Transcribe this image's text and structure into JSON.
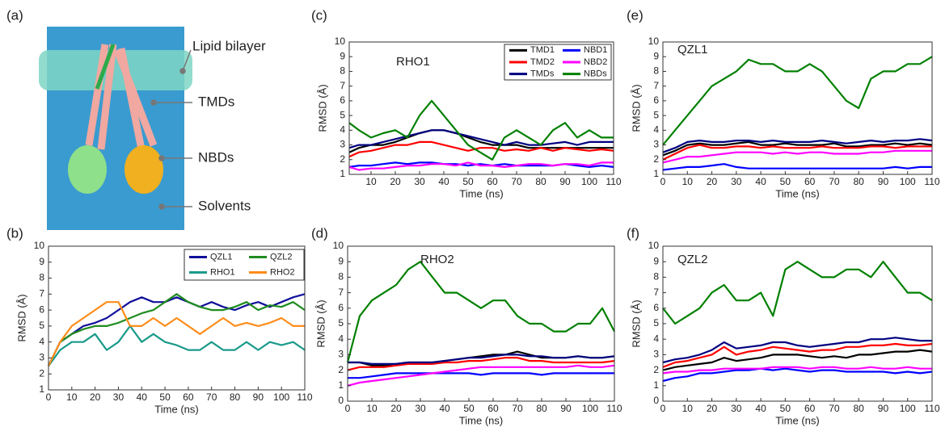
{
  "panel_a": {
    "panel_label": "(a)",
    "labels": [
      "Lipid bilayer",
      "TMDs",
      "NBDs",
      "Solvents"
    ]
  },
  "chart_data": [
    {
      "type": "line",
      "panel_label": "(b)",
      "xlabel": "Time (ns)",
      "ylabel": "RMSD (Å)",
      "legend": true,
      "xlim": [
        0,
        110
      ],
      "ylim": [
        1,
        10
      ],
      "xticks": [
        0,
        10,
        20,
        30,
        40,
        50,
        60,
        70,
        80,
        90,
        100,
        110
      ],
      "yticks": [
        1,
        2,
        3,
        4,
        5,
        6,
        7,
        8,
        9,
        10
      ],
      "x": [
        0,
        5,
        10,
        15,
        20,
        25,
        30,
        35,
        40,
        45,
        50,
        55,
        60,
        65,
        70,
        75,
        80,
        85,
        90,
        95,
        100,
        105,
        110
      ],
      "series": [
        {
          "name": "QZL1",
          "color": "#10109a",
          "values": [
            2.5,
            4,
            4.5,
            5,
            5.2,
            5.5,
            6,
            6.5,
            6.8,
            6.5,
            6.5,
            6.8,
            6.5,
            6.2,
            6.5,
            6.2,
            6,
            6.3,
            6.5,
            6.2,
            6.5,
            6.8,
            7
          ]
        },
        {
          "name": "QZL2",
          "color": "#1f8c1f",
          "values": [
            2.5,
            4,
            4.5,
            4.8,
            5,
            5,
            5.2,
            5.5,
            5.8,
            6,
            6.5,
            7,
            6.5,
            6.2,
            6,
            6,
            6.2,
            6.5,
            6,
            6.3,
            6.2,
            6.5,
            6
          ]
        },
        {
          "name": "RHO1",
          "color": "#1a9a8a",
          "values": [
            2.5,
            3.5,
            4,
            4,
            4.5,
            3.5,
            4,
            5,
            4,
            4.5,
            4,
            3.8,
            3.5,
            3.5,
            4,
            3.5,
            3.5,
            4,
            3.5,
            4,
            3.8,
            4,
            3.5
          ]
        },
        {
          "name": "RHO2",
          "color": "#ff8c1a",
          "values": [
            2.5,
            4,
            5,
            5.5,
            6,
            6.5,
            6.5,
            5,
            5,
            5.5,
            5,
            5.5,
            5,
            4.5,
            5,
            5.5,
            5,
            5.2,
            5,
            5.2,
            5.5,
            5,
            5
          ]
        }
      ]
    },
    {
      "type": "line",
      "panel_label": "(c)",
      "annotation": "RHO1",
      "xlabel": "Time (ns)",
      "ylabel": "RMSD (Å)",
      "legend": true,
      "xlim": [
        1,
        110
      ],
      "ylim": [
        1,
        10
      ],
      "xticks": [
        10,
        20,
        30,
        40,
        50,
        60,
        70,
        80,
        90,
        100,
        110
      ],
      "yticks": [
        1,
        2,
        3,
        4,
        5,
        6,
        7,
        8,
        9,
        10
      ],
      "x": [
        1,
        5,
        10,
        15,
        20,
        25,
        30,
        35,
        40,
        45,
        50,
        55,
        60,
        65,
        70,
        75,
        80,
        85,
        90,
        95,
        100,
        105,
        110
      ],
      "series": [
        {
          "name": "TMD1",
          "color": "#000000",
          "values": [
            2.5,
            2.8,
            3,
            3,
            3.2,
            3.5,
            3.8,
            4,
            4,
            3.8,
            3.5,
            3.2,
            3,
            3,
            3,
            2.8,
            2.8,
            2.8,
            2.8,
            2.8,
            2.8,
            2.8,
            2.8
          ]
        },
        {
          "name": "NBD1",
          "color": "#0000ff",
          "values": [
            1.5,
            1.6,
            1.6,
            1.7,
            1.8,
            1.7,
            1.8,
            1.8,
            1.7,
            1.7,
            1.6,
            1.7,
            1.6,
            1.7,
            1.6,
            1.6,
            1.6,
            1.6,
            1.7,
            1.6,
            1.5,
            1.6,
            1.5
          ]
        },
        {
          "name": "TMD2",
          "color": "#ff0000",
          "values": [
            2.2,
            2.5,
            2.6,
            2.8,
            3,
            3,
            3.2,
            3.2,
            3,
            2.8,
            2.6,
            2.8,
            2.8,
            2.6,
            2.7,
            2.6,
            2.8,
            2.6,
            2.8,
            2.7,
            2.6,
            2.7,
            2.6
          ]
        },
        {
          "name": "NBD2",
          "color": "#ff00ff",
          "values": [
            1.5,
            1.3,
            1.4,
            1.4,
            1.5,
            1.6,
            1.6,
            1.7,
            1.7,
            1.6,
            1.8,
            1.6,
            1.6,
            1.5,
            1.6,
            1.7,
            1.7,
            1.6,
            1.7,
            1.7,
            1.6,
            1.8,
            1.8
          ]
        },
        {
          "name": "TMDs",
          "color": "#000080",
          "values": [
            2.8,
            3,
            3,
            3.2,
            3.4,
            3.6,
            3.8,
            4,
            4,
            3.8,
            3.6,
            3.4,
            3.2,
            3,
            3.2,
            3,
            3,
            3.1,
            3.2,
            3,
            3.2,
            3.2,
            3.2
          ]
        },
        {
          "name": "NBDs",
          "color": "#008000",
          "values": [
            4.5,
            4,
            3.5,
            3.8,
            4,
            3.5,
            5,
            6,
            5,
            4,
            3,
            2.5,
            2,
            3.5,
            4,
            3.5,
            3,
            4,
            4.5,
            3.5,
            4,
            3.5,
            3.5
          ]
        }
      ]
    },
    {
      "type": "line",
      "panel_label": "(d)",
      "annotation": "RHO2",
      "xlabel": "Time (ns)",
      "ylabel": "RMSD (Å)",
      "legend": false,
      "xlim": [
        0,
        110
      ],
      "ylim": [
        0,
        10
      ],
      "xticks": [
        0,
        10,
        20,
        30,
        40,
        50,
        60,
        70,
        80,
        90,
        100,
        110
      ],
      "yticks": [
        0,
        1,
        2,
        3,
        4,
        5,
        6,
        7,
        8,
        9,
        10
      ],
      "x": [
        0,
        5,
        10,
        15,
        20,
        25,
        30,
        35,
        40,
        45,
        50,
        55,
        60,
        65,
        70,
        75,
        80,
        85,
        90,
        95,
        100,
        105,
        110
      ],
      "series": [
        {
          "color": "#000000",
          "values": [
            2.5,
            2.5,
            2.3,
            2.3,
            2.4,
            2.5,
            2.5,
            2.5,
            2.6,
            2.7,
            2.8,
            2.9,
            3,
            3,
            3.2,
            3,
            2.8,
            2.8,
            2.8,
            2.9,
            2.8,
            2.8,
            2.9
          ]
        },
        {
          "color": "#0000ff",
          "values": [
            1.5,
            1.5,
            1.6,
            1.7,
            1.8,
            1.8,
            1.8,
            1.8,
            1.8,
            1.8,
            1.8,
            1.7,
            1.8,
            1.8,
            1.8,
            1.8,
            1.7,
            1.8,
            1.8,
            1.8,
            1.8,
            1.8,
            1.8
          ]
        },
        {
          "color": "#ff0000",
          "values": [
            2,
            2.2,
            2.2,
            2.2,
            2.3,
            2.4,
            2.4,
            2.4,
            2.5,
            2.5,
            2.6,
            2.6,
            2.7,
            2.8,
            2.8,
            2.6,
            2.6,
            2.5,
            2.5,
            2.5,
            2.5,
            2.5,
            2.6
          ]
        },
        {
          "color": "#ff00ff",
          "values": [
            1,
            1.2,
            1.3,
            1.4,
            1.5,
            1.6,
            1.7,
            1.8,
            1.9,
            2,
            2.1,
            2.2,
            2.2,
            2.2,
            2.2,
            2.2,
            2.2,
            2.2,
            2.2,
            2.3,
            2.2,
            2.2,
            2.3
          ]
        },
        {
          "color": "#000080",
          "values": [
            2.5,
            2.5,
            2.4,
            2.4,
            2.4,
            2.5,
            2.5,
            2.5,
            2.6,
            2.7,
            2.8,
            2.8,
            2.9,
            3,
            3,
            2.9,
            2.9,
            2.8,
            2.8,
            2.9,
            2.8,
            2.8,
            2.9
          ]
        },
        {
          "color": "#008000",
          "values": [
            2.5,
            5.5,
            6.5,
            7,
            7.5,
            8.5,
            9,
            8,
            7,
            7,
            6.5,
            6,
            6.5,
            6.5,
            5.5,
            5,
            5,
            4.5,
            4.5,
            5,
            5,
            6,
            4.5
          ]
        }
      ]
    },
    {
      "type": "line",
      "panel_label": "(e)",
      "annotation": "QZL1",
      "xlabel": "Time (ns)",
      "ylabel": "RMSD (Å)",
      "legend": false,
      "xlim": [
        0,
        110
      ],
      "ylim": [
        1,
        10
      ],
      "xticks": [
        0,
        10,
        20,
        30,
        40,
        50,
        60,
        70,
        80,
        90,
        100,
        110
      ],
      "yticks": [
        1,
        2,
        3,
        4,
        5,
        6,
        7,
        8,
        9,
        10
      ],
      "x": [
        0,
        5,
        10,
        15,
        20,
        25,
        30,
        35,
        40,
        45,
        50,
        55,
        60,
        65,
        70,
        75,
        80,
        85,
        90,
        95,
        100,
        105,
        110
      ],
      "series": [
        {
          "color": "#000000",
          "values": [
            2.3,
            2.6,
            3,
            3.1,
            3,
            3,
            3.1,
            3.2,
            3,
            3,
            3.1,
            3,
            3,
            3,
            3.1,
            2.9,
            2.9,
            3,
            3,
            3.1,
            3,
            3.1,
            3
          ]
        },
        {
          "color": "#0000ff",
          "values": [
            1.3,
            1.4,
            1.5,
            1.5,
            1.6,
            1.7,
            1.5,
            1.4,
            1.4,
            1.4,
            1.4,
            1.4,
            1.4,
            1.4,
            1.4,
            1.4,
            1.4,
            1.4,
            1.4,
            1.5,
            1.4,
            1.5,
            1.5
          ]
        },
        {
          "color": "#ff0000",
          "values": [
            2,
            2.4,
            2.8,
            3,
            2.8,
            2.8,
            2.9,
            2.9,
            2.8,
            2.9,
            2.8,
            2.8,
            2.8,
            2.9,
            2.8,
            2.8,
            2.8,
            2.9,
            2.9,
            2.8,
            2.9,
            2.9,
            2.9
          ]
        },
        {
          "color": "#ff00ff",
          "values": [
            1.8,
            2,
            2.2,
            2.2,
            2.3,
            2.4,
            2.5,
            2.5,
            2.5,
            2.4,
            2.5,
            2.4,
            2.5,
            2.5,
            2.4,
            2.4,
            2.4,
            2.5,
            2.5,
            2.6,
            2.6,
            2.6,
            2.6
          ]
        },
        {
          "color": "#000080",
          "values": [
            2.5,
            2.8,
            3.2,
            3.3,
            3.2,
            3.2,
            3.3,
            3.3,
            3.2,
            3.3,
            3.2,
            3.2,
            3.2,
            3.3,
            3.2,
            3.1,
            3.2,
            3.3,
            3.2,
            3.3,
            3.3,
            3.4,
            3.3
          ]
        },
        {
          "color": "#008000",
          "values": [
            3,
            4,
            5,
            6,
            7,
            7.5,
            8,
            8.8,
            8.5,
            8.5,
            8,
            8,
            8.5,
            8,
            7,
            6,
            5.5,
            7.5,
            8,
            8,
            8.5,
            8.5,
            9
          ]
        }
      ]
    },
    {
      "type": "line",
      "panel_label": "(f)",
      "annotation": "QZL2",
      "xlabel": "Time (ns)",
      "ylabel": "RMSD (Å)",
      "legend": false,
      "xlim": [
        0,
        110
      ],
      "ylim": [
        0,
        10
      ],
      "xticks": [
        0,
        10,
        20,
        30,
        40,
        50,
        60,
        70,
        80,
        90,
        100,
        110
      ],
      "yticks": [
        0,
        1,
        2,
        3,
        4,
        5,
        6,
        7,
        8,
        9,
        10
      ],
      "x": [
        0,
        5,
        10,
        15,
        20,
        25,
        30,
        35,
        40,
        45,
        50,
        55,
        60,
        65,
        70,
        75,
        80,
        85,
        90,
        95,
        100,
        105,
        110
      ],
      "series": [
        {
          "color": "#000000",
          "values": [
            2,
            2.2,
            2.3,
            2.4,
            2.5,
            2.8,
            2.6,
            2.7,
            2.8,
            3,
            3,
            3,
            2.9,
            2.8,
            2.9,
            2.8,
            3,
            3,
            3.1,
            3.2,
            3.2,
            3.3,
            3.2
          ]
        },
        {
          "color": "#0000ff",
          "values": [
            1.3,
            1.5,
            1.6,
            1.8,
            1.8,
            1.9,
            2,
            2,
            2.1,
            2,
            2.1,
            2,
            1.9,
            2,
            2,
            1.9,
            1.9,
            1.9,
            1.9,
            1.8,
            1.9,
            1.8,
            1.9
          ]
        },
        {
          "color": "#ff0000",
          "values": [
            2.2,
            2.5,
            2.6,
            2.8,
            3,
            3.5,
            3,
            3.2,
            3.3,
            3.5,
            3.4,
            3.3,
            3.2,
            3.3,
            3.3,
            3.5,
            3.5,
            3.6,
            3.6,
            3.7,
            3.6,
            3.6,
            3.7
          ]
        },
        {
          "color": "#ff00ff",
          "values": [
            1.8,
            1.9,
            1.9,
            2,
            2,
            2.1,
            2.1,
            2.1,
            2.1,
            2.2,
            2.2,
            2.2,
            2.1,
            2.2,
            2.2,
            2.1,
            2.1,
            2.2,
            2.1,
            2.1,
            2.2,
            2.1,
            2.1
          ]
        },
        {
          "color": "#000080",
          "values": [
            2.5,
            2.7,
            2.8,
            3,
            3.3,
            3.8,
            3.4,
            3.5,
            3.6,
            3.8,
            3.8,
            3.6,
            3.5,
            3.6,
            3.7,
            3.8,
            3.8,
            4,
            4,
            4.1,
            4,
            3.9,
            3.9
          ]
        },
        {
          "color": "#008000",
          "values": [
            6,
            5,
            5.5,
            6,
            7,
            7.5,
            6.5,
            6.5,
            7,
            5.5,
            8.5,
            9,
            8.5,
            8,
            8,
            8.5,
            8.5,
            8,
            9,
            8,
            7,
            7,
            6.5
          ]
        }
      ]
    }
  ]
}
